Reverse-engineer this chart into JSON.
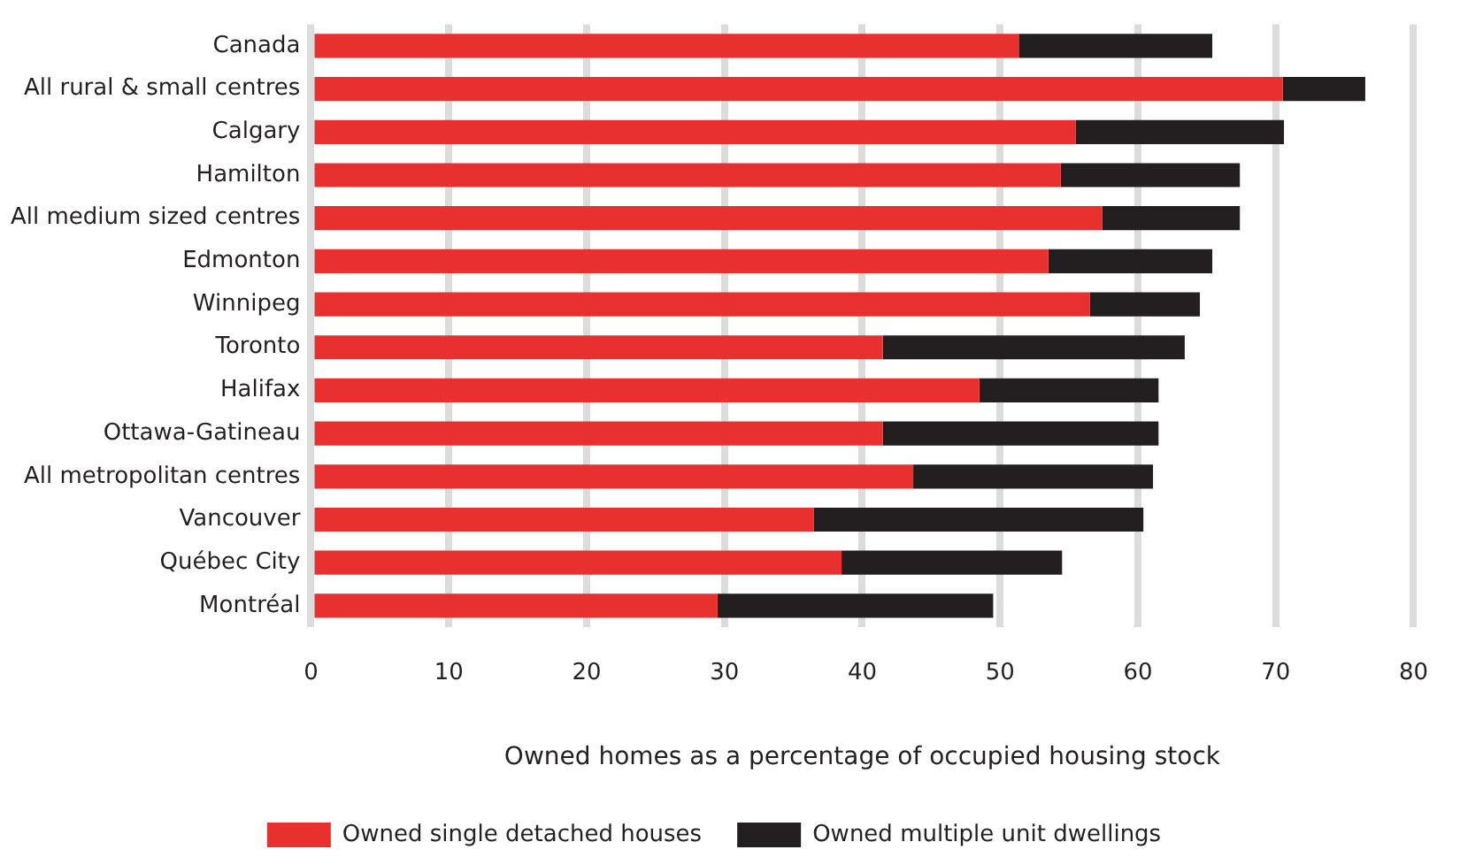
{
  "chart_data": {
    "type": "bar",
    "orientation": "horizontal",
    "stacked": true,
    "xlabel": "Owned homes as a percentage of occupied housing stock",
    "categories": [
      "Canada",
      "All rural & small centres",
      "Calgary",
      "Hamilton",
      "All medium sized centres",
      "Edmonton",
      "Winnipeg",
      "Toronto",
      "Halifax",
      "Ottawa-Gatineau",
      "All metropolitan centres",
      "Vancouver",
      "Québec City",
      "Montréal"
    ],
    "series": [
      {
        "name": "Owned single detached houses",
        "color": "#e8302e",
        "values": [
          51.4,
          70.5,
          55.5,
          54.4,
          57.4,
          53.5,
          56.5,
          41.5,
          48.5,
          41.5,
          43.7,
          36.5,
          38.5,
          29.5
        ]
      },
      {
        "name": "Owned multiple unit dwellings",
        "color": "#231f20",
        "values": [
          14.0,
          6.0,
          15.1,
          13.0,
          10.0,
          11.9,
          8.0,
          21.9,
          13.0,
          20.0,
          17.4,
          23.9,
          16.0,
          20.0
        ]
      }
    ],
    "xlim": [
      0,
      80
    ],
    "xticks": [
      0,
      10,
      20,
      30,
      40,
      50,
      60,
      70,
      80
    ],
    "grid": "x",
    "legend": "bottom"
  }
}
